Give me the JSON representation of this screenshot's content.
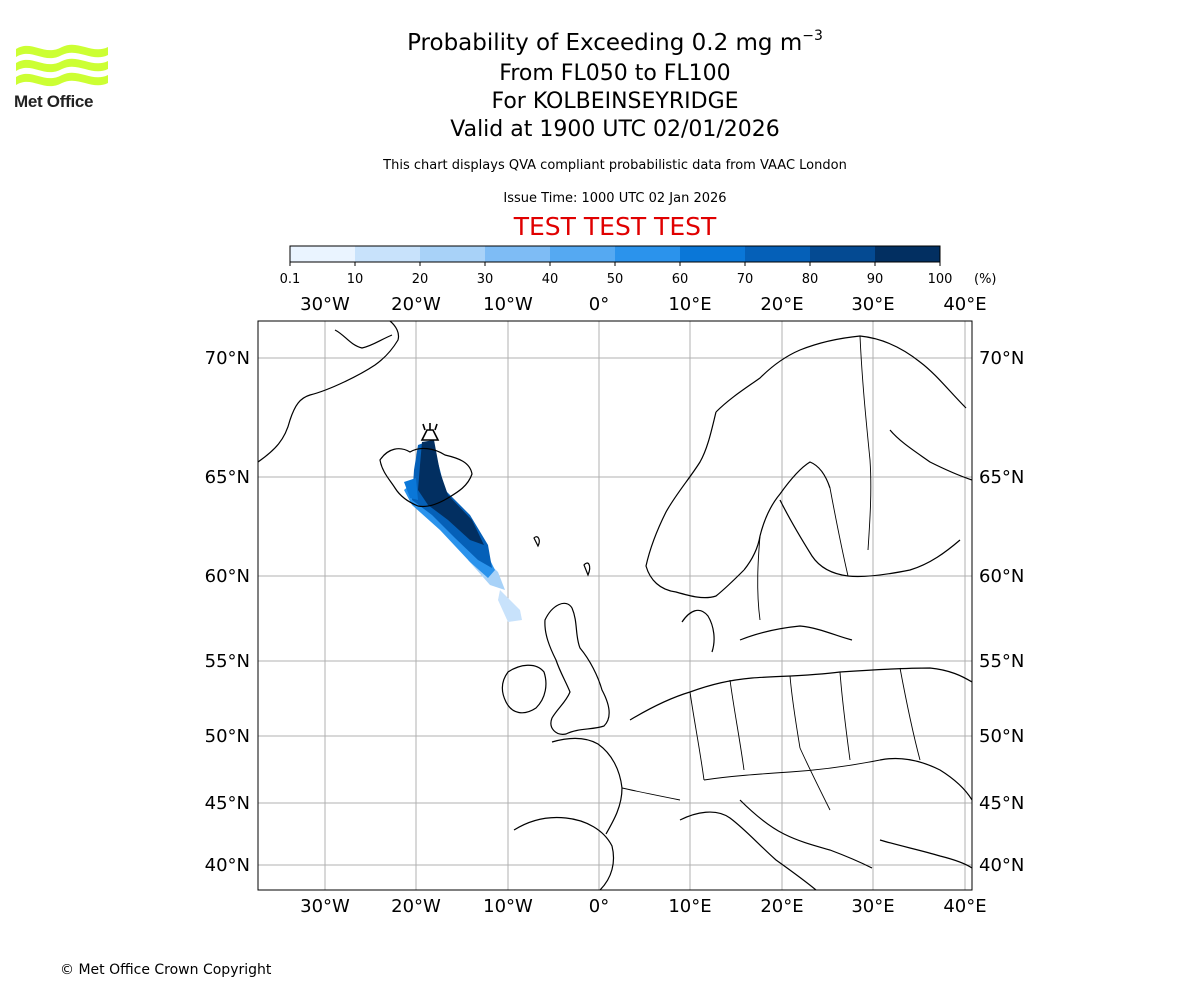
{
  "logo": {
    "text": "Met Office",
    "color": "#ccff33"
  },
  "title": {
    "line1_main": "Probability of Exceeding 0.2 mg m",
    "line1_exp": "−3",
    "line2": "From FL050 to FL100",
    "line3": "For KOLBEINSEYRIDGE",
    "line4": "Valid at 1900 UTC 02/01/2026"
  },
  "description": "This chart displays QVA compliant probabilistic data from VAAC London",
  "issue_time": "Issue Time: 1000 UTC 02 Jan 2026",
  "test_banner": "TEST TEST TEST",
  "colorbar": {
    "ticks": [
      "0.1",
      "10",
      "20",
      "30",
      "40",
      "50",
      "60",
      "70",
      "80",
      "90",
      "100"
    ],
    "unit": "(%)",
    "colors": [
      "#eaf4ff",
      "#c8e2fb",
      "#a8d2f8",
      "#7ebcf5",
      "#55a9f2",
      "#2b93ec",
      "#0a77d8",
      "#0560b8",
      "#044a92",
      "#022f61"
    ]
  },
  "map": {
    "lon_labels": [
      "30°W",
      "20°W",
      "10°W",
      "0°",
      "10°E",
      "20°E",
      "30°E",
      "40°E"
    ],
    "lat_labels": [
      "70°N",
      "65°N",
      "60°N",
      "55°N",
      "50°N",
      "45°N",
      "40°N"
    ],
    "grid_color": "#b0b0b0",
    "volcano_symbol": "volcano-icon"
  },
  "copyright": "© Met Office Crown Copyright"
}
